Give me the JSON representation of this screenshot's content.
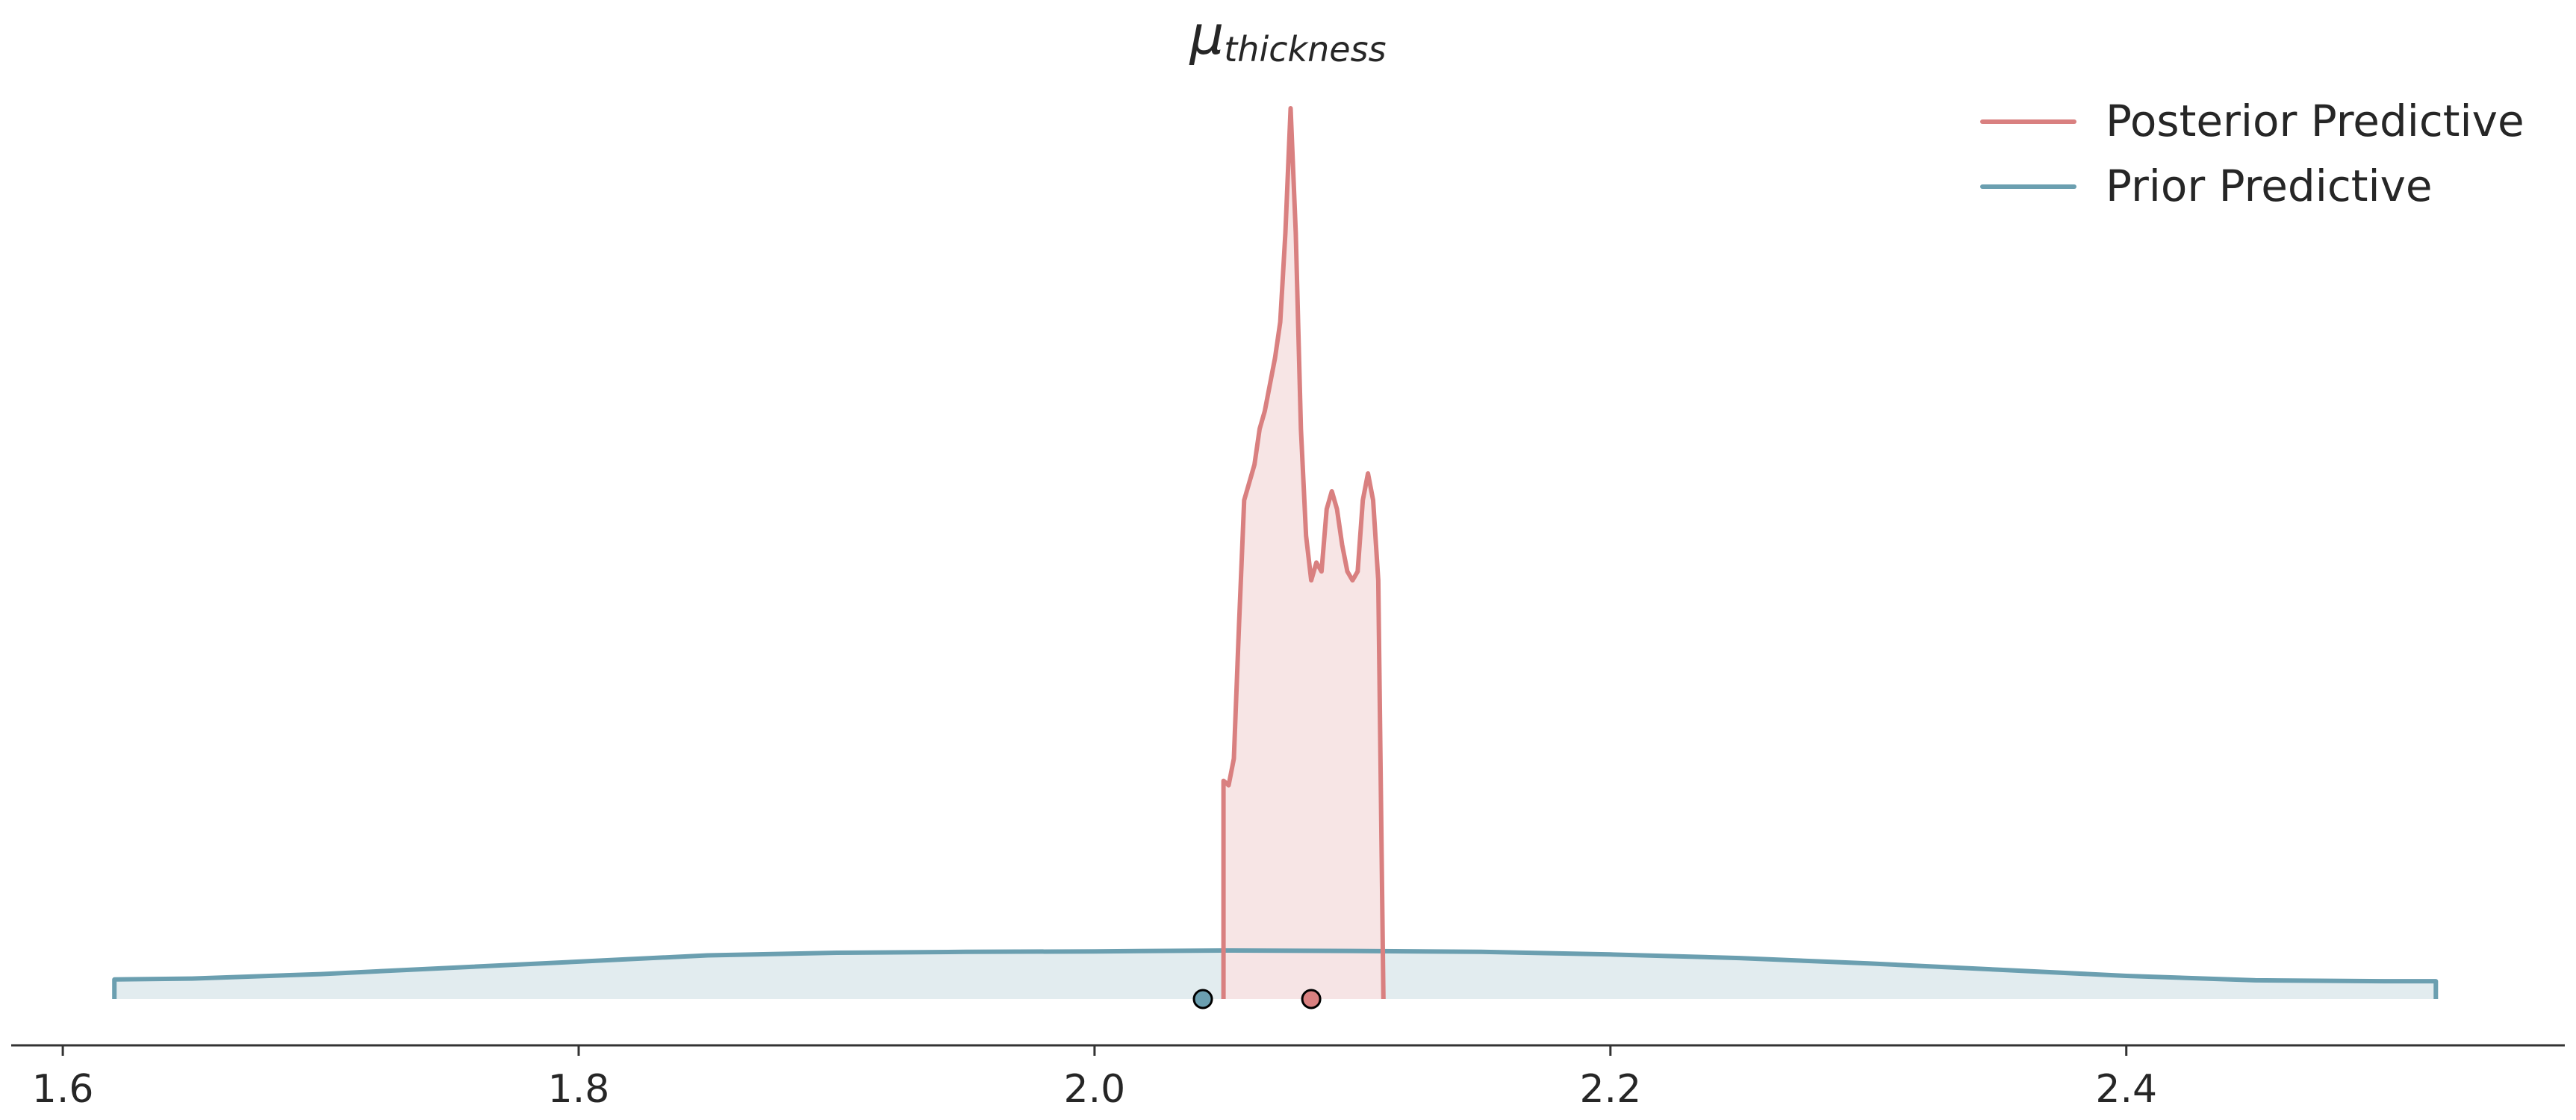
{
  "chart_data": {
    "type": "line",
    "title": {
      "symbol": "μ",
      "subscript": "thickness"
    },
    "xlabel": "",
    "ylabel": "",
    "xlim": [
      1.58,
      2.57
    ],
    "ylim": [
      0,
      1.0
    ],
    "x_ticks": [
      1.6,
      1.8,
      2.0,
      2.2,
      2.4
    ],
    "x_tick_labels": [
      "1.6",
      "1.8",
      "2.0",
      "2.2",
      "2.4"
    ],
    "grid": false,
    "legend_position": "top-right",
    "series": [
      {
        "name": "Posterior Predictive",
        "color": "#d98080",
        "fill": "#f7e4e4",
        "x": [
          2.05,
          2.05,
          2.052,
          2.054,
          2.056,
          2.058,
          2.06,
          2.062,
          2.064,
          2.066,
          2.068,
          2.07,
          2.072,
          2.074,
          2.076,
          2.078,
          2.08,
          2.082,
          2.084,
          2.086,
          2.088,
          2.09,
          2.092,
          2.094,
          2.096,
          2.098,
          2.1,
          2.102,
          2.104,
          2.106,
          2.108,
          2.11,
          2.112,
          2.112
        ],
        "y": [
          0.0,
          0.245,
          0.24,
          0.27,
          0.42,
          0.56,
          0.58,
          0.6,
          0.64,
          0.66,
          0.69,
          0.72,
          0.76,
          0.86,
          1.0,
          0.86,
          0.64,
          0.52,
          0.47,
          0.49,
          0.48,
          0.55,
          0.57,
          0.55,
          0.51,
          0.48,
          0.47,
          0.48,
          0.56,
          0.59,
          0.56,
          0.47,
          0.0,
          0.0
        ],
        "point_estimate": 2.084
      },
      {
        "name": "Prior Predictive",
        "color": "#6b9fb0",
        "fill": "#e0ebee",
        "x": [
          1.62,
          1.62,
          1.65,
          1.7,
          1.75,
          1.8,
          1.85,
          1.9,
          1.95,
          2.0,
          2.05,
          2.1,
          2.15,
          2.2,
          2.25,
          2.3,
          2.35,
          2.4,
          2.45,
          2.5,
          2.52,
          2.52
        ],
        "y": [
          0.0,
          0.022,
          0.023,
          0.028,
          0.035,
          0.042,
          0.049,
          0.052,
          0.053,
          0.0535,
          0.0545,
          0.054,
          0.053,
          0.05,
          0.046,
          0.04,
          0.033,
          0.026,
          0.021,
          0.02,
          0.02,
          0.0
        ],
        "point_estimate": 2.042
      }
    ]
  }
}
